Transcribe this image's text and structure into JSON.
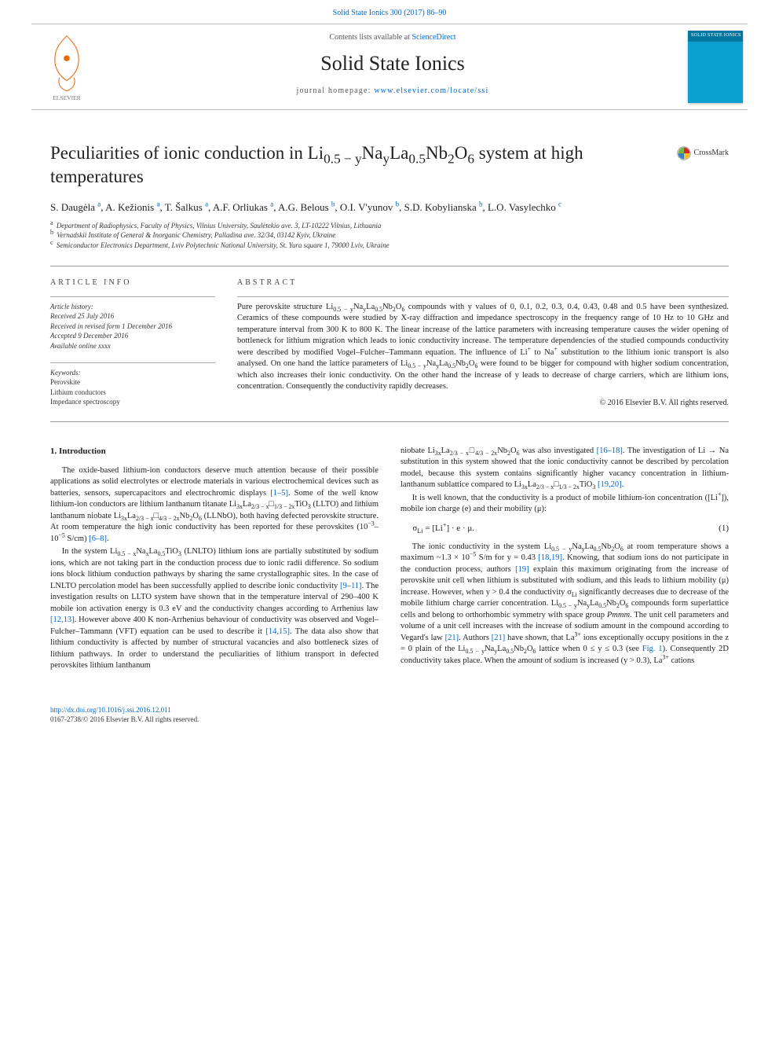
{
  "top_link_prefix": "Solid State Ionics 300 (2017) 86–90",
  "header": {
    "contents_prefix": "Contents lists available at ",
    "contents_link": "ScienceDirect",
    "journal": "Solid State Ionics",
    "homepage_prefix": "journal homepage: ",
    "homepage_url": "www.elsevier.com/locate/ssi",
    "cover_label": "SOLID STATE IONICS"
  },
  "title_html": "Peculiarities of ionic conduction in Li<sub>0.5 − y</sub>Na<sub>y</sub>La<sub>0.5</sub>Nb<sub>2</sub>O<sub>6</sub> system at high temperatures",
  "crossmark": "CrossMark",
  "authors_html": "S. Daugėla <sup><a href=\"#\">a</a></sup>, A. Kežionis <sup><a href=\"#\">a</a></sup>, T. Šalkus <sup><a href=\"#\">a</a></sup>, A.F. Orliukas <sup><a href=\"#\">a</a></sup>, A.G. Belous <sup><a href=\"#\">b</a></sup>, O.I. V'yunov <sup><a href=\"#\">b</a></sup>, S.D. Kobylianska <sup><a href=\"#\">b</a></sup>, L.O. Vasylechko <sup><a href=\"#\">c</a></sup>",
  "affiliations": [
    {
      "sup": "a",
      "text": "Department of Radiophysics, Faculty of Physics, Vilnius University, Saulėtekio ave. 3, LT-10222 Vilnius, Lithuania"
    },
    {
      "sup": "b",
      "text": "Vernadskii Institute of General & Inorganic Chemistry, Palladina ave. 32/34, 03142 Kyiv, Ukraine"
    },
    {
      "sup": "c",
      "text": "Semiconductor Electronics Department, Lviv Polytechnic National University, St. Yura square 1, 79000 Lviv, Ukraine"
    }
  ],
  "article_info_head": "ARTICLE INFO",
  "abstract_head": "ABSTRACT",
  "history": {
    "label": "Article history:",
    "lines": [
      "Received 25 July 2016",
      "Received in revised form 1 December 2016",
      "Accepted 9 December 2016",
      "Available online xxxx"
    ]
  },
  "keywords": {
    "label": "Keywords:",
    "items": [
      "Perovskite",
      "Lithium conductors",
      "Impedance spectroscopy"
    ]
  },
  "abstract_html": "Pure perovskite structure Li<sub>0.5 − y</sub>Na<sub>y</sub>La<sub>0.5</sub>Nb<sub>2</sub>O<sub>6</sub> compounds with y values of 0, 0.1, 0.2, 0.3, 0.4, 0.43, 0.48 and 0.5 have been synthesized. Ceramics of these compounds were studied by X-ray diffraction and impedance spectroscopy in the frequency range of 10 Hz to 10 GHz and temperature interval from 300 K to 800 K. The linear increase of the lattice parameters with increasing temperature causes the wider opening of bottleneck for lithium migration which leads to ionic conductivity increase. The temperature dependencies of the studied compounds conductivity were described by modified Vogel–Fulcher–Tammann equation. The influence of Li<sup>+</sup> to Na<sup>+</sup> substitution to the lithium ionic transport is also analysed. On one hand the lattice parameters of Li<sub>0.5 − y</sub>Na<sub>y</sub>La<sub>0.5</sub>Nb<sub>2</sub>O<sub>6</sub> were found to be bigger for compound with higher sodium concentration, which also increases their ionic conductivity. On the other hand the increase of y leads to decrease of charge carriers, which are lithium ions, concentration. Consequently the conductivity rapidly decreases.",
  "copyright": "© 2016 Elsevier B.V. All rights reserved.",
  "section1": "1. Introduction",
  "paras_left": [
    "The oxide-based lithium-ion conductors deserve much attention because of their possible applications as solid electrolytes or electrode materials in various electrochemical devices such as batteries, sensors, supercapacitors and electrochromic displays <a href=\"#\">[1–5]</a>. Some of the well know lithium-ion conductors are lithium lanthanum titanate Li<sub>3x</sub>La<sub>2/3 − x</sub>□<sub>1/3 − 2x</sub>TiO<sub>3</sub> (LLTO) and lithium lanthanum niobate Li<sub>3x</sub>La<sub>2/3 − x</sub>□<sub>4/3 − 2x</sub>Nb<sub>2</sub>O<sub>6</sub> (LLNbO), both having defected perovskite structure. At room temperature the high ionic conductivity has been reported for these perovskites (10<sup>−3</sup>–10<sup>−5</sup> S/cm) <a href=\"#\">[6–8]</a>.",
    "In the system Li<sub>0.5 − x</sub>Na<sub>x</sub>La<sub>0.5</sub>TiO<sub>3</sub> (LNLTO) lithium ions are partially substituted by sodium ions, which are not taking part in the conduction process due to ionic radii difference. So sodium ions block lithium conduction pathways by sharing the same crystallographic sites. In the case of LNLTO percolation model has been successfully applied to describe ionic conductivity <a href=\"#\">[9–11]</a>. The investigation results on LLTO system have shown that in the temperature interval of 290–400 K mobile ion activation energy is 0.3 eV and the conductivity changes according to Arrhenius law <a href=\"#\">[12,13]</a>. However above 400 K non-Arrhenius behaviour of conductivity was observed and Vogel–Fulcher–Tammann (VFT) equation can be used to describe it <a href=\"#\">[14,15]</a>. The data also show that lithium conductivity is affected by number of structural vacancies and also bottleneck sizes of lithium pathways. In order to understand the peculiarities of lithium transport in defected perovskites lithium lanthanum"
  ],
  "paras_right_pre": [
    "niobate Li<sub>3x</sub>La<sub>2/3 − x</sub>□<sub>4/3 − 2x</sub>Nb<sub>2</sub>O<sub>6</sub> was also investigated <a href=\"#\">[16–18]</a>. The investigation of Li → Na substitution in this system showed that the ionic conductivity cannot be described by percolation model, because this system contains significantly higher vacancy concentration in lithium-lanthanum sublattice compared to Li<sub>3x</sub>La<sub>2/3 − x</sub>□<sub>1/3 − 2x</sub>TiO<sub>3</sub> <a href=\"#\">[19,20]</a>.",
    "It is well known, that the conductivity is a product of mobile lithium-ion concentration ([Li<sup>+</sup>]), mobile ion charge (e) and their mobility (μ):"
  ],
  "equation_html": "σ<sub>Li</sub> = [Li<sup>+</sup>] · e · μ.",
  "equation_num": "(1)",
  "paras_right_post": [
    "The ionic conductivity in the system Li<sub>0.5 − y</sub>Na<sub>y</sub>La<sub>0.5</sub>Nb<sub>2</sub>O<sub>6</sub> at room temperature shows a maximum ~1.3 × 10<sup>−5</sup> S/m for y = 0.43 <a href=\"#\">[18,19]</a>. Knowing, that sodium ions do not participate in the conduction process, authors <a href=\"#\">[19]</a> explain this maximum originating from the increase of perovskite unit cell when lithium is substituted with sodium, and this leads to lithium mobility (μ) increase. However, when y > 0.4 the conductivity σ<sub>Li</sub> significantly decreases due to decrease of the mobile lithium charge carrier concentration. Li<sub>0.5 − y</sub>Na<sub>y</sub>La<sub>0.5</sub>Nb<sub>2</sub>O<sub>6</sub> compounds form superlattice cells and belong to orthorhombic symmetry with space group <i>Pmmm</i>. The unit cell parameters and volume of a unit cell increases with the increase of sodium amount in the compound according to Vegard's law <a href=\"#\">[21]</a>. Authors <a href=\"#\">[21]</a> have shown, that La<sup>3+</sup> ions exceptionally occupy positions in the z = 0 plain of the Li<sub>0.5 − y</sub>Na<sub>y</sub>La<sub>0.5</sub>Nb<sub>2</sub>O<sub>6</sub> lattice when 0 ≤ y ≤ 0.3 (see <a href=\"#\">Fig. 1</a>). Consequently 2D conductivity takes place. When the amount of sodium is increased (y > 0.3), La<sup>3+</sup> cations"
  ],
  "footer": {
    "doi": "http://dx.doi.org/10.1016/j.ssi.2016.12.011",
    "issn_line": "0167-2738/© 2016 Elsevier B.V. All rights reserved."
  },
  "colors": {
    "link": "#0066cc",
    "rule": "#999999",
    "cover_bg": "#0aa0d0",
    "cover_strip": "#0077a0",
    "elsevier_orange": "#ec6607"
  }
}
